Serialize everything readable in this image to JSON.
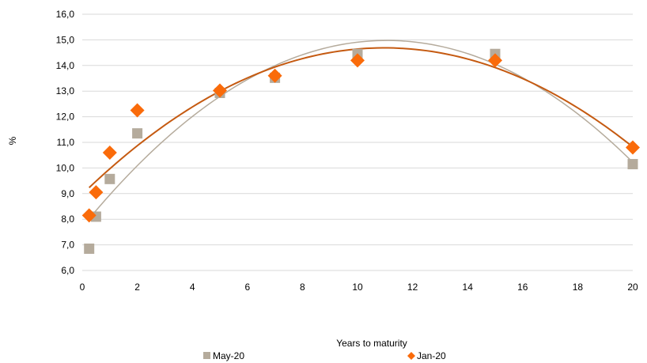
{
  "chart_data": {
    "type": "scatter",
    "xlabel": "Years to maturity",
    "ylabel": "%",
    "xlim": [
      0,
      20
    ],
    "ylim": [
      6,
      16
    ],
    "x_ticks": [
      "0",
      "2",
      "4",
      "6",
      "8",
      "10",
      "12",
      "14",
      "16",
      "18",
      "20"
    ],
    "y_ticks": [
      "6,0",
      "7,0",
      "8,0",
      "9,0",
      "10,0",
      "11,0",
      "12,0",
      "13,0",
      "14,0",
      "15,0",
      "16,0"
    ],
    "grid": "horizontal",
    "legend_position": "bottom",
    "series": [
      {
        "name": "May-20",
        "marker": "square",
        "color": "#b5ab9c",
        "trend_color": "#b5ab9c",
        "x": [
          0.25,
          0.5,
          1,
          2,
          5,
          7,
          10,
          15,
          20
        ],
        "y": [
          6.85,
          8.1,
          9.57,
          11.35,
          12.93,
          13.52,
          14.45,
          14.45,
          10.15
        ]
      },
      {
        "name": "Jan-20",
        "marker": "diamond",
        "color": "#fa6b0a",
        "trend_color": "#c55a11",
        "x": [
          0.25,
          0.5,
          1,
          2,
          5,
          7,
          10,
          15,
          20
        ],
        "y": [
          8.15,
          9.05,
          10.6,
          12.25,
          13.02,
          13.6,
          14.2,
          14.2,
          10.8
        ]
      }
    ]
  }
}
